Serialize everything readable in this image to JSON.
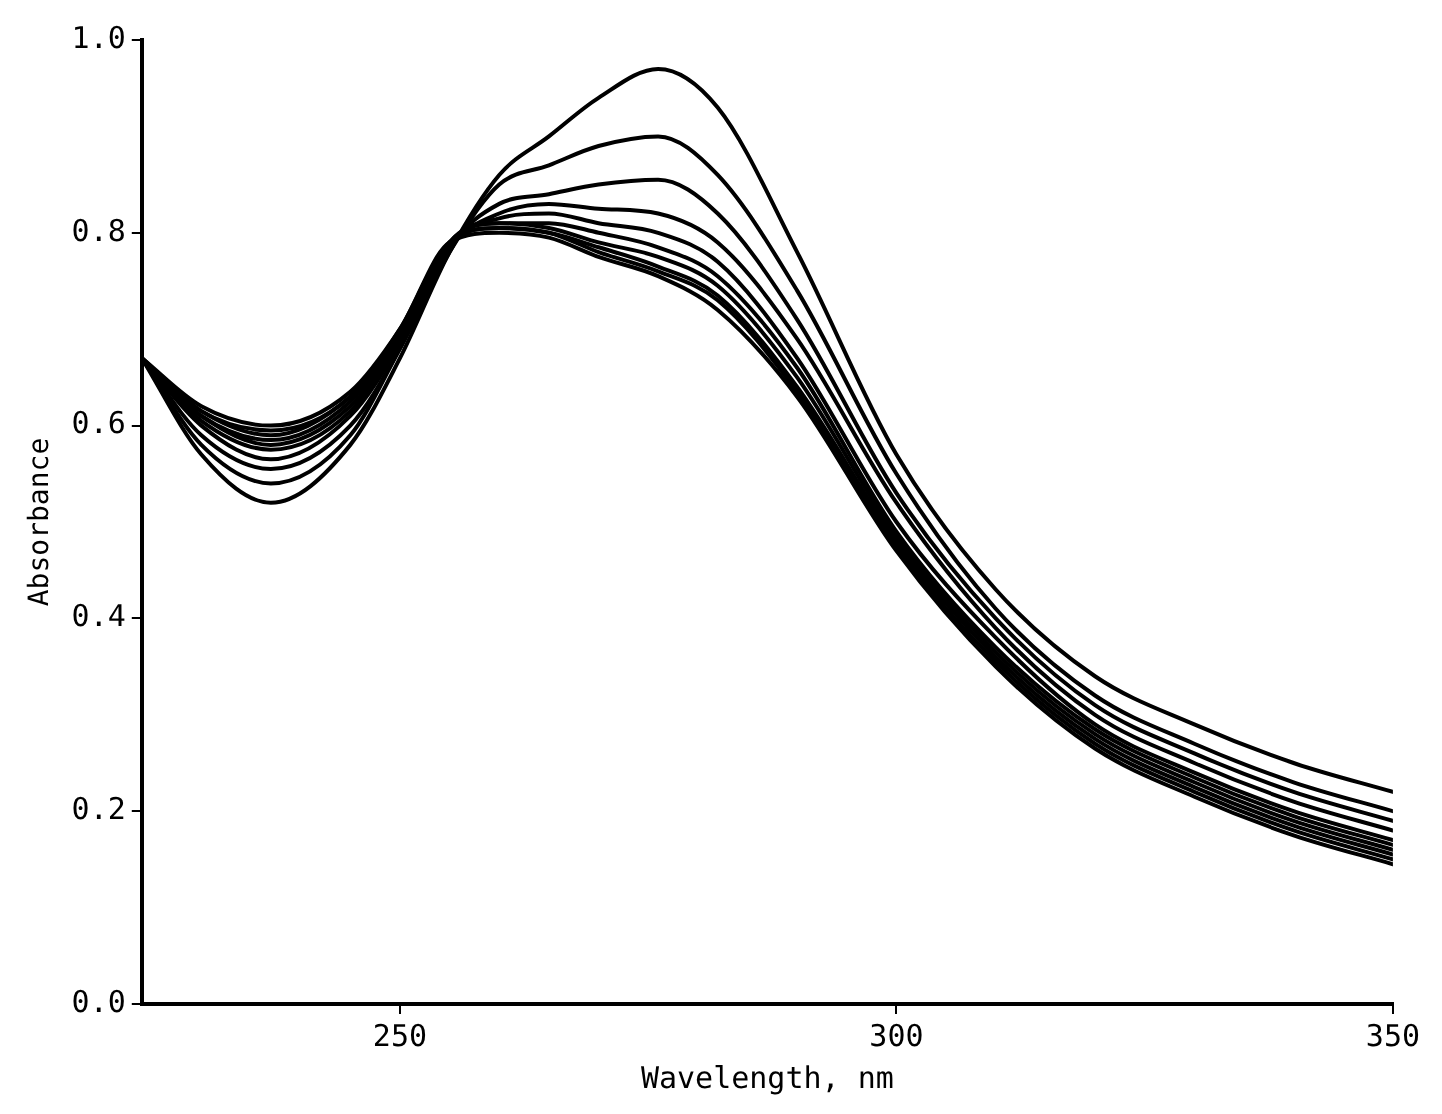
{
  "chart_data": {
    "type": "line",
    "xlabel": "Wavelength, nm",
    "ylabel": "Absorbance",
    "x": [
      224,
      230,
      237,
      245,
      250,
      255,
      260,
      265,
      270,
      276,
      282,
      290,
      300,
      310,
      320,
      330,
      340,
      350
    ],
    "series": [
      {
        "color": "#000000",
        "values": [
          0.67,
          0.57,
          0.52,
          0.58,
          0.67,
          0.78,
          0.86,
          0.9,
          0.94,
          0.97,
          0.93,
          0.78,
          0.57,
          0.43,
          0.34,
          0.29,
          0.25,
          0.22
        ]
      },
      {
        "color": "#000000",
        "values": [
          0.67,
          0.58,
          0.54,
          0.59,
          0.68,
          0.78,
          0.85,
          0.87,
          0.89,
          0.9,
          0.86,
          0.74,
          0.55,
          0.41,
          0.32,
          0.27,
          0.23,
          0.2
        ]
      },
      {
        "color": "#000000",
        "values": [
          0.67,
          0.59,
          0.555,
          0.6,
          0.68,
          0.785,
          0.83,
          0.84,
          0.85,
          0.855,
          0.82,
          0.71,
          0.53,
          0.4,
          0.31,
          0.26,
          0.22,
          0.19
        ]
      },
      {
        "color": "#000000",
        "values": [
          0.67,
          0.6,
          0.565,
          0.61,
          0.685,
          0.785,
          0.82,
          0.83,
          0.825,
          0.82,
          0.79,
          0.69,
          0.52,
          0.39,
          0.3,
          0.25,
          0.21,
          0.18
        ]
      },
      {
        "color": "#000000",
        "values": [
          0.67,
          0.605,
          0.575,
          0.615,
          0.69,
          0.79,
          0.815,
          0.82,
          0.81,
          0.8,
          0.77,
          0.67,
          0.5,
          0.38,
          0.29,
          0.24,
          0.2,
          0.17
        ]
      },
      {
        "color": "#000000",
        "values": [
          0.67,
          0.61,
          0.58,
          0.62,
          0.69,
          0.79,
          0.81,
          0.81,
          0.8,
          0.785,
          0.755,
          0.66,
          0.49,
          0.37,
          0.285,
          0.235,
          0.195,
          0.165
        ]
      },
      {
        "color": "#000000",
        "values": [
          0.67,
          0.61,
          0.585,
          0.625,
          0.695,
          0.79,
          0.81,
          0.805,
          0.79,
          0.775,
          0.745,
          0.65,
          0.485,
          0.365,
          0.28,
          0.23,
          0.19,
          0.16
        ]
      },
      {
        "color": "#000000",
        "values": [
          0.67,
          0.615,
          0.59,
          0.63,
          0.695,
          0.79,
          0.805,
          0.8,
          0.785,
          0.765,
          0.735,
          0.64,
          0.48,
          0.36,
          0.275,
          0.225,
          0.185,
          0.155
        ]
      },
      {
        "color": "#000000",
        "values": [
          0.67,
          0.615,
          0.595,
          0.63,
          0.7,
          0.79,
          0.805,
          0.8,
          0.78,
          0.76,
          0.73,
          0.635,
          0.475,
          0.355,
          0.27,
          0.22,
          0.18,
          0.15
        ]
      },
      {
        "color": "#000000",
        "values": [
          0.67,
          0.62,
          0.6,
          0.635,
          0.7,
          0.79,
          0.8,
          0.795,
          0.775,
          0.755,
          0.72,
          0.63,
          0.47,
          0.35,
          0.265,
          0.215,
          0.175,
          0.145
        ]
      }
    ],
    "xlim": [
      224,
      350
    ],
    "xticks": [
      250,
      300,
      350
    ],
    "ylim": [
      0,
      1
    ],
    "yticks": [
      {
        "value": 0,
        "label": "0.0"
      },
      0.2,
      0.4,
      0.6,
      0.8,
      {
        "value": 1,
        "label": "1.0"
      }
    ],
    "grid": false,
    "legend": false,
    "marker": "none",
    "line_style": "solid"
  }
}
